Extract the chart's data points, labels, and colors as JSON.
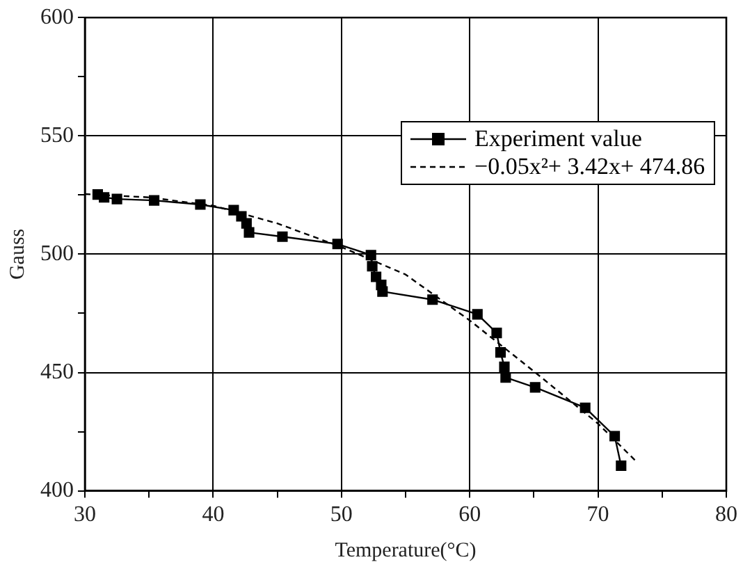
{
  "chart_data": {
    "type": "line",
    "xlabel": "Temperature(°C)",
    "ylabel": "Gauss",
    "xlim": [
      30,
      80
    ],
    "xticks": [
      30,
      {
        "value": 35,
        "label": null
      },
      40,
      {
        "value": 45,
        "label": null
      },
      50,
      {
        "value": 55,
        "label": null
      },
      60,
      {
        "value": 65,
        "label": null
      },
      70,
      {
        "value": 75,
        "label": null
      },
      80
    ],
    "ylim": [
      400,
      600
    ],
    "yticks": [
      400,
      {
        "value": 425,
        "label": null
      },
      450,
      {
        "value": 475,
        "label": null
      },
      500,
      {
        "value": 525,
        "label": null
      },
      550,
      {
        "value": 575,
        "label": null
      },
      600
    ],
    "grid": true,
    "legend": "top right",
    "series": [
      {
        "name": "Experiment value",
        "color": "#000000",
        "marker": "square",
        "line_style": "solid",
        "x": [
          31.0,
          31.5,
          32.5,
          35.4,
          39.0,
          41.6,
          42.2,
          42.6,
          42.8,
          45.4,
          49.7,
          52.3,
          52.4,
          52.7,
          53.1,
          53.2,
          57.1,
          60.6,
          62.1,
          62.4,
          62.7,
          62.8,
          65.1,
          69.0,
          71.3,
          71.8
        ],
        "values": [
          525.2,
          524,
          523.3,
          522.7,
          521,
          518.6,
          516,
          513,
          509.2,
          507.4,
          504.3,
          499.6,
          494.9,
          490.4,
          487,
          484.2,
          480.8,
          474.6,
          466.7,
          458.5,
          452.4,
          447.9,
          443.7,
          435.1,
          423.1,
          410.6
        ]
      },
      {
        "name": "−0.05x²+ 3.42x+ 474.86",
        "color": "#000000",
        "marker": "none",
        "line_style": "dashed",
        "x": [
          30,
          35,
          40,
          45,
          50,
          55,
          60,
          65,
          70,
          73
        ],
        "values": [
          525.4,
          524,
          520.5,
          513,
          503,
          491.4,
          472,
          450.5,
          428.4,
          412.3
        ]
      }
    ]
  }
}
